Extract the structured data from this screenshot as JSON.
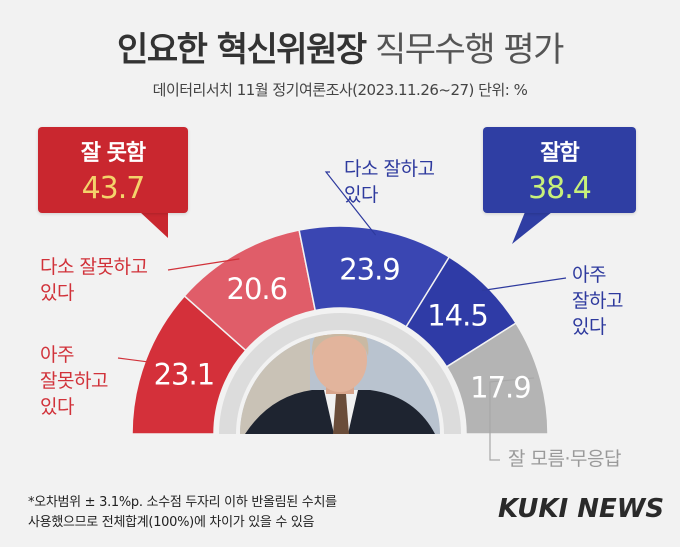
{
  "title": {
    "bold": "인요한 혁신위원장",
    "light": "직무수행 평가"
  },
  "subtitle": "데이터리서치 11월 정기여론조사(2023.11.26~27) 단위: %",
  "summary": {
    "negative": {
      "label": "잘 못함",
      "value": "43.7"
    },
    "positive": {
      "label": "잘함",
      "value": "38.4"
    }
  },
  "category_labels": {
    "very_bad": [
      "아주",
      "잘못하고",
      "있다"
    ],
    "somewhat_bad": [
      "다소 잘못하고",
      "있다"
    ],
    "somewhat_good": [
      "다소 잘하고",
      "있다"
    ],
    "very_good": [
      "아주",
      "잘하고",
      "있다"
    ],
    "unknown": "잘 모름·무응답"
  },
  "footnote": [
    "*오차범위 ± 3.1%p. 소수점 두자리 이하 반올림된 수치를",
    "사용했으므로 전체합계(100%)에 차이가 있을 수 있음"
  ],
  "logo": "KUKI NEWS",
  "chart_data": {
    "type": "pie",
    "variant": "semicircle-donut",
    "categories": [
      "아주 잘못하고 있다",
      "다소 잘못하고 있다",
      "다소 잘하고 있다",
      "아주 잘하고 있다",
      "잘 모름·무응답"
    ],
    "values": [
      23.1,
      20.6,
      23.9,
      14.5,
      17.9
    ],
    "labels": [
      "23.1",
      "20.6",
      "23.9",
      "14.5",
      "17.9"
    ],
    "colors": [
      "#d4303a",
      "#e05d69",
      "#3a46b2",
      "#2f3ba6",
      "#b4b4b4"
    ]
  }
}
